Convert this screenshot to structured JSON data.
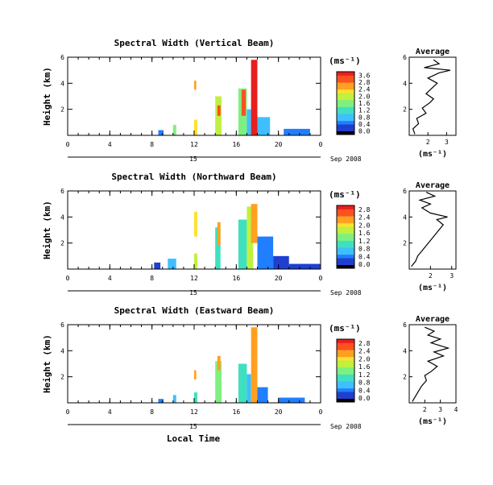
{
  "colorbar_ticks": [
    "0.0",
    "0.4",
    "0.8",
    "1.2",
    "1.6",
    "2.0",
    "2.4",
    "2.8"
  ],
  "colorbar_ticks_top": [
    "3.6",
    "2.8"
  ],
  "time_ticks": [
    "0",
    "4",
    "8",
    "12",
    "16",
    "20",
    "0"
  ],
  "day_label": "15",
  "date_label": "Sep 2008",
  "local_time_label": "Local Time",
  "colors": {
    "scale": [
      "#2b2b8f",
      "#1f3fd0",
      "#1f7fff",
      "#3fbfff",
      "#3fe0c0",
      "#7ff07f",
      "#c0f040",
      "#ffe030",
      "#ffa020",
      "#ff5020",
      "#e81f1f"
    ]
  },
  "chart_data": [
    {
      "type": "heatmap",
      "title": "Spectral Width (Vertical Beam)",
      "ylabel": "Height (km)",
      "yticks": [
        "2",
        "4",
        "6"
      ],
      "ylim": [
        0,
        6
      ],
      "xlim": [
        0,
        24
      ],
      "colorbar_label": "(ms⁻¹)",
      "colorbar_ticks": [
        "0.0",
        "0.4",
        "0.8",
        "1.2",
        "1.6",
        "2.0",
        "2.4",
        "2.8",
        "3.6"
      ],
      "cells": [
        {
          "t": [
            8.6,
            9.1
          ],
          "h": [
            0,
            0.4
          ],
          "v": 0.6
        },
        {
          "t": [
            10.0,
            10.3
          ],
          "h": [
            0,
            0.8
          ],
          "v": 1.8
        },
        {
          "t": [
            12.0,
            12.3
          ],
          "h": [
            0,
            1.2
          ],
          "v": 2.4
        },
        {
          "t": [
            12.0,
            12.2
          ],
          "h": [
            3.5,
            4.2
          ],
          "v": 2.8
        },
        {
          "t": [
            14.0,
            14.6
          ],
          "h": [
            0,
            3.0
          ],
          "v": 2.2
        },
        {
          "t": [
            14.2,
            14.5
          ],
          "h": [
            1.5,
            2.3
          ],
          "v": 3.2
        },
        {
          "t": [
            16.2,
            17.0
          ],
          "h": [
            0,
            3.6
          ],
          "v": 1.8
        },
        {
          "t": [
            16.5,
            16.9
          ],
          "h": [
            1.5,
            3.5
          ],
          "v": 3.3
        },
        {
          "t": [
            17.0,
            17.4
          ],
          "h": [
            0,
            2.0
          ],
          "v": 1.2
        },
        {
          "t": [
            17.4,
            18.0
          ],
          "h": [
            0,
            5.8
          ],
          "v": 3.6
        },
        {
          "t": [
            18.0,
            19.2
          ],
          "h": [
            0,
            1.4
          ],
          "v": 1.0
        },
        {
          "t": [
            20.5,
            23.0
          ],
          "h": [
            0,
            0.5
          ],
          "v": 0.6
        }
      ],
      "average": {
        "title": "Average",
        "xlabel": "(ms⁻¹)",
        "xticks": [
          "2",
          "3"
        ],
        "yticks": [
          "2",
          "4",
          "6"
        ],
        "xlim": [
          1,
          3.5
        ],
        "ylim": [
          0,
          6
        ],
        "profile": [
          [
            1.3,
            0.1
          ],
          [
            1.2,
            0.5
          ],
          [
            1.5,
            0.9
          ],
          [
            1.4,
            1.3
          ],
          [
            1.9,
            1.7
          ],
          [
            1.7,
            2.1
          ],
          [
            2.1,
            2.5
          ],
          [
            2.3,
            2.8
          ],
          [
            1.9,
            3.2
          ],
          [
            2.2,
            3.6
          ],
          [
            2.5,
            4.0
          ],
          [
            2.0,
            4.4
          ],
          [
            2.6,
            4.8
          ],
          [
            3.2,
            5.0
          ],
          [
            1.8,
            5.2
          ],
          [
            2.6,
            5.5
          ],
          [
            2.3,
            5.8
          ]
        ]
      }
    },
    {
      "type": "heatmap",
      "title": "Spectral Width (Northward Beam)",
      "ylabel": "Height (km)",
      "yticks": [
        "2",
        "4",
        "6"
      ],
      "ylim": [
        0,
        6
      ],
      "xlim": [
        0,
        24
      ],
      "colorbar_label": "(ms⁻¹)",
      "colorbar_ticks": [
        "0.0",
        "0.4",
        "0.8",
        "1.2",
        "1.6",
        "2.0",
        "2.4",
        "2.8"
      ],
      "cells": [
        {
          "t": [
            8.2,
            8.8
          ],
          "h": [
            0,
            0.5
          ],
          "v": 0.4
        },
        {
          "t": [
            9.5,
            10.3
          ],
          "h": [
            0,
            0.8
          ],
          "v": 1.2
        },
        {
          "t": [
            12.0,
            12.3
          ],
          "h": [
            0,
            1.2
          ],
          "v": 2.0
        },
        {
          "t": [
            12.0,
            12.3
          ],
          "h": [
            2.5,
            4.4
          ],
          "v": 2.6
        },
        {
          "t": [
            14.0,
            14.5
          ],
          "h": [
            0,
            3.2
          ],
          "v": 1.6
        },
        {
          "t": [
            14.2,
            14.5
          ],
          "h": [
            1.8,
            3.6
          ],
          "v": 2.8
        },
        {
          "t": [
            16.2,
            17.0
          ],
          "h": [
            0,
            3.8
          ],
          "v": 1.4
        },
        {
          "t": [
            17.0,
            17.6
          ],
          "h": [
            0,
            4.8
          ],
          "v": 2.2
        },
        {
          "t": [
            17.4,
            18.0
          ],
          "h": [
            2.0,
            5.0
          ],
          "v": 2.8
        },
        {
          "t": [
            18.0,
            19.5
          ],
          "h": [
            0,
            2.5
          ],
          "v": 0.8
        },
        {
          "t": [
            19.5,
            21.0
          ],
          "h": [
            0,
            1.0
          ],
          "v": 0.5
        },
        {
          "t": [
            21.0,
            24.0
          ],
          "h": [
            0,
            0.4
          ],
          "v": 0.4
        }
      ],
      "average": {
        "title": "Average",
        "xlabel": "(ms⁻¹)",
        "xticks": [
          "2",
          "3"
        ],
        "yticks": [
          "2",
          "4",
          "6"
        ],
        "xlim": [
          1,
          3.2
        ],
        "ylim": [
          0,
          6
        ],
        "profile": [
          [
            1.1,
            0.2
          ],
          [
            1.3,
            0.6
          ],
          [
            1.4,
            1.0
          ],
          [
            1.6,
            1.4
          ],
          [
            1.8,
            1.8
          ],
          [
            2.0,
            2.2
          ],
          [
            2.2,
            2.6
          ],
          [
            2.4,
            3.0
          ],
          [
            2.6,
            3.4
          ],
          [
            2.3,
            3.8
          ],
          [
            2.8,
            4.0
          ],
          [
            2.0,
            4.3
          ],
          [
            1.6,
            4.7
          ],
          [
            2.0,
            5.0
          ],
          [
            1.5,
            5.3
          ],
          [
            2.2,
            5.6
          ],
          [
            1.8,
            5.9
          ]
        ]
      }
    },
    {
      "type": "heatmap",
      "title": "Spectral Width (Eastward Beam)",
      "ylabel": "Height (km)",
      "yticks": [
        "2",
        "4",
        "6"
      ],
      "ylim": [
        0,
        6
      ],
      "xlim": [
        0,
        24
      ],
      "colorbar_label": "(ms⁻¹)",
      "colorbar_ticks": [
        "0.0",
        "0.4",
        "0.8",
        "1.2",
        "1.6",
        "2.0",
        "2.4",
        "2.8"
      ],
      "cells": [
        {
          "t": [
            8.6,
            9.1
          ],
          "h": [
            0,
            0.3
          ],
          "v": 0.8
        },
        {
          "t": [
            10.0,
            10.3
          ],
          "h": [
            0,
            0.6
          ],
          "v": 1.2
        },
        {
          "t": [
            12.0,
            12.3
          ],
          "h": [
            0,
            0.8
          ],
          "v": 1.6
        },
        {
          "t": [
            12.0,
            12.2
          ],
          "h": [
            1.8,
            2.5
          ],
          "v": 2.8
        },
        {
          "t": [
            14.0,
            14.6
          ],
          "h": [
            0,
            3.2
          ],
          "v": 1.8
        },
        {
          "t": [
            14.2,
            14.5
          ],
          "h": [
            2.5,
            3.6
          ],
          "v": 2.8
        },
        {
          "t": [
            16.2,
            17.0
          ],
          "h": [
            0,
            3.0
          ],
          "v": 1.6
        },
        {
          "t": [
            17.0,
            17.4
          ],
          "h": [
            0,
            2.2
          ],
          "v": 1.2
        },
        {
          "t": [
            17.4,
            18.0
          ],
          "h": [
            0,
            5.8
          ],
          "v": 2.8
        },
        {
          "t": [
            18.0,
            19.0
          ],
          "h": [
            0,
            1.2
          ],
          "v": 0.8
        },
        {
          "t": [
            20.0,
            22.5
          ],
          "h": [
            0,
            0.4
          ],
          "v": 0.6
        }
      ],
      "average": {
        "title": "Average",
        "xlabel": "(ms⁻¹)",
        "xticks": [
          "2",
          "3",
          "4"
        ],
        "yticks": [
          "2",
          "4",
          "6"
        ],
        "xlim": [
          1,
          4
        ],
        "ylim": [
          0,
          6
        ],
        "profile": [
          [
            1.2,
            0.1
          ],
          [
            1.4,
            0.5
          ],
          [
            1.6,
            0.9
          ],
          [
            1.8,
            1.3
          ],
          [
            2.1,
            1.7
          ],
          [
            2.0,
            2.1
          ],
          [
            2.4,
            2.4
          ],
          [
            2.8,
            2.8
          ],
          [
            2.2,
            3.2
          ],
          [
            3.2,
            3.6
          ],
          [
            2.6,
            3.9
          ],
          [
            3.5,
            4.2
          ],
          [
            2.4,
            4.6
          ],
          [
            3.0,
            4.9
          ],
          [
            2.2,
            5.2
          ],
          [
            2.6,
            5.5
          ],
          [
            2.0,
            5.8
          ]
        ]
      }
    }
  ]
}
